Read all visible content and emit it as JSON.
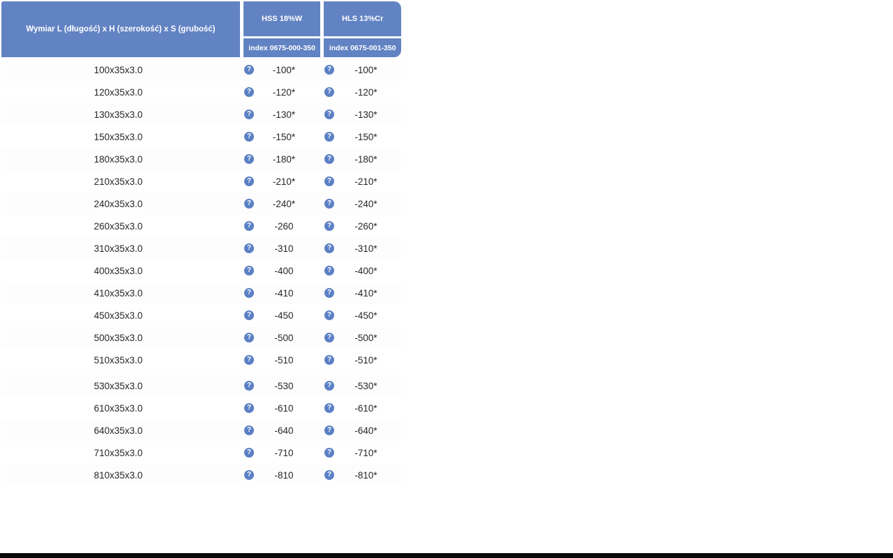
{
  "header": {
    "dimension_label": "Wymiar L (długość) x H (szerokość) x S (grubość)",
    "columns": [
      {
        "name": "HSS 18%W",
        "index_label": "index 0675-000-350"
      },
      {
        "name": "HLS 13%Cr",
        "index_label": "index 0675-001-350"
      }
    ]
  },
  "icons": {
    "info": "?"
  },
  "colors": {
    "header_blue": "#6283c3",
    "icon_blue": "#5b80c5",
    "text": "#262626",
    "bottom_bar": "#0b0b0b"
  },
  "rows": [
    {
      "dim": "100x35x3.0",
      "hss": "-100*",
      "hls": "-100*"
    },
    {
      "dim": "120x35x3.0",
      "hss": "-120*",
      "hls": "-120*"
    },
    {
      "dim": "130x35x3.0",
      "hss": "-130*",
      "hls": "-130*"
    },
    {
      "dim": "150x35x3.0",
      "hss": "-150*",
      "hls": "-150*"
    },
    {
      "dim": "180x35x3.0",
      "hss": "-180*",
      "hls": "-180*"
    },
    {
      "dim": "210x35x3.0",
      "hss": "-210*",
      "hls": "-210*"
    },
    {
      "dim": "240x35x3.0",
      "hss": "-240*",
      "hls": "-240*"
    },
    {
      "dim": "260x35x3.0",
      "hss": "-260",
      "hls": "-260*"
    },
    {
      "dim": "310x35x3.0",
      "hss": "-310",
      "hls": "-310*"
    },
    {
      "dim": "400x35x3.0",
      "hss": "-400",
      "hls": "-400*"
    },
    {
      "dim": "410x35x3.0",
      "hss": "-410",
      "hls": "-410*"
    },
    {
      "dim": "450x35x3.0",
      "hss": "-450",
      "hls": "-450*"
    },
    {
      "dim": "500x35x3.0",
      "hss": "-500",
      "hls": "-500*"
    },
    {
      "dim": "510x35x3.0",
      "hss": "-510",
      "hls": "-510*"
    },
    {
      "dim": "530x35x3.0",
      "hss": "-530",
      "hls": "-530*"
    },
    {
      "dim": "610x35x3.0",
      "hss": "-610",
      "hls": "-610*"
    },
    {
      "dim": "640x35x3.0",
      "hss": "-640",
      "hls": "-640*"
    },
    {
      "dim": "710x35x3.0",
      "hss": "-710",
      "hls": "-710*"
    },
    {
      "dim": "810x35x3.0",
      "hss": "-810",
      "hls": "-810*"
    }
  ]
}
